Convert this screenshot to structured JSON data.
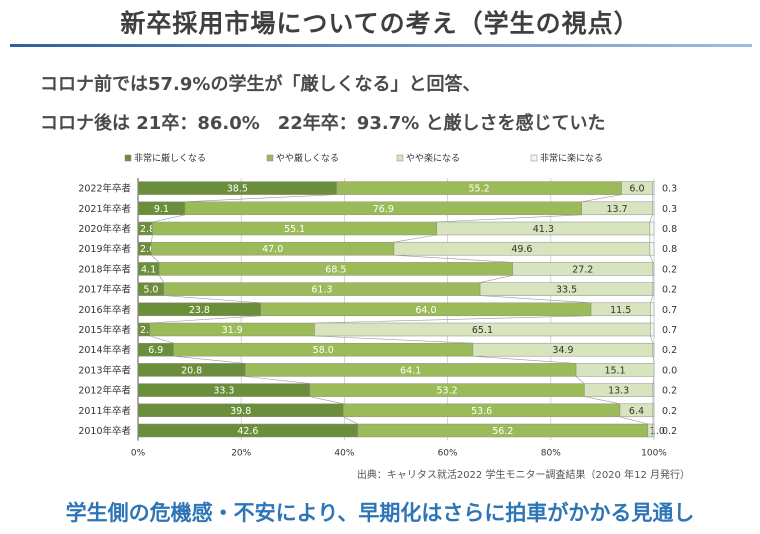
{
  "header": {
    "title": "新卒採用市場についての考え（学生の視点）",
    "line1": "コロナ前では57.9%の学生が「厳しくなる」と回答、",
    "line2": "コロナ後は 21卒：86.0%　22年卒：93.7% と厳しさを感じていた"
  },
  "source": "出典：キャリタス就活2022 学生モニター調査結果（2020 年12 月発行）",
  "conclusion": "学生側の危機感・不安により、早期化はさらに拍車がかかる見通し",
  "colors": {
    "rule": "#4a7bb5",
    "conclusion": "#2e75b6",
    "series": [
      "#6b8e3a",
      "#9bbb59",
      "#d7e4bd",
      "#f5f5ef"
    ],
    "label_dark": "#ffffff",
    "label_light": "#333333"
  },
  "chart_data": {
    "type": "bar",
    "orientation": "horizontal",
    "stacked": true,
    "categories": [
      "2022年卒者",
      "2021年卒者",
      "2020年卒者",
      "2019年卒者",
      "2018年卒者",
      "2017年卒者",
      "2016年卒者",
      "2015年卒者",
      "2014年卒者",
      "2013年卒者",
      "2012年卒者",
      "2011年卒者",
      "2010年卒者"
    ],
    "series": [
      {
        "name": "非常に厳しくなる",
        "values": [
          38.5,
          9.1,
          2.8,
          2.6,
          4.1,
          5.0,
          23.8,
          2.3,
          6.9,
          20.8,
          33.3,
          39.8,
          42.6
        ]
      },
      {
        "name": "やや厳しくなる",
        "values": [
          55.2,
          76.9,
          55.1,
          47.0,
          68.5,
          61.3,
          64.0,
          31.9,
          58.0,
          64.1,
          53.2,
          53.6,
          56.2
        ]
      },
      {
        "name": "やや楽になる",
        "values": [
          6.0,
          13.7,
          41.3,
          49.6,
          27.2,
          33.5,
          11.5,
          65.1,
          34.9,
          15.1,
          13.3,
          6.4,
          1.0
        ]
      },
      {
        "name": "非常に楽になる",
        "values": [
          0.3,
          0.3,
          0.8,
          0.8,
          0.2,
          0.2,
          0.7,
          0.7,
          0.2,
          0.0,
          0.2,
          0.2,
          0.2
        ]
      }
    ],
    "xlim": [
      0,
      100
    ],
    "x_ticks": [
      "0%",
      "20%",
      "40%",
      "60%",
      "80%",
      "100%"
    ],
    "legend_position": "top",
    "last_series_labels_outside": true
  }
}
